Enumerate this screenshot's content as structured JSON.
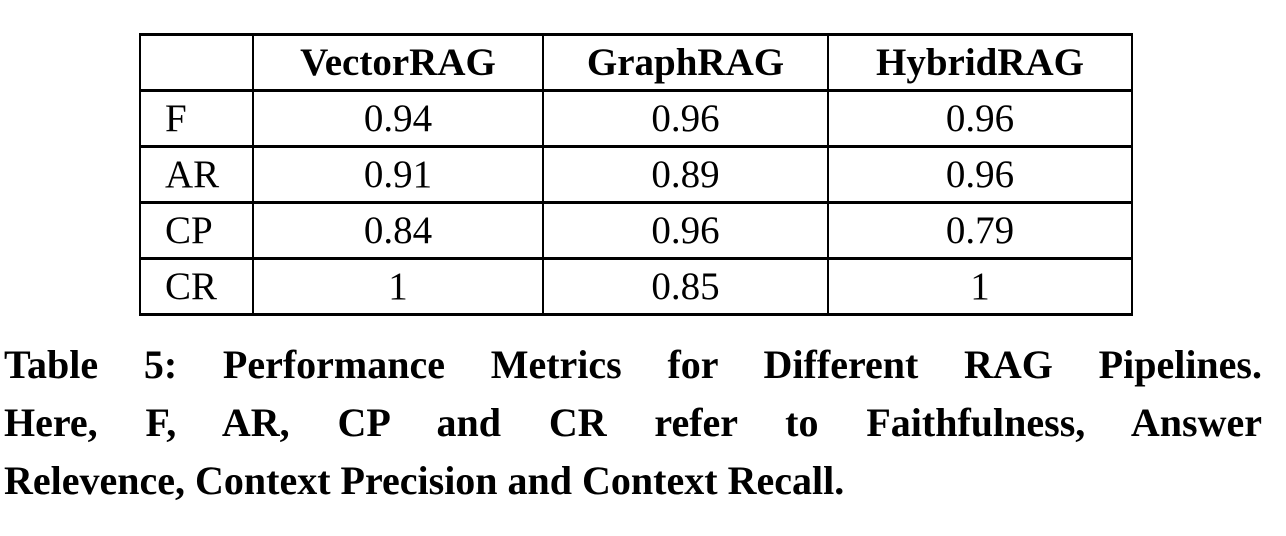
{
  "table": {
    "title": "Table 5",
    "columns": [
      "",
      "VectorRAG",
      "GraphRAG",
      "HybridRAG"
    ],
    "rows": [
      {
        "label": "F",
        "values": [
          "0.94",
          "0.96",
          "0.96"
        ]
      },
      {
        "label": "AR",
        "values": [
          "0.91",
          "0.89",
          "0.96"
        ]
      },
      {
        "label": "CP",
        "values": [
          "0.84",
          "0.96",
          "0.79"
        ]
      },
      {
        "label": "CR",
        "values": [
          "1",
          "0.85",
          "1"
        ]
      }
    ]
  },
  "caption": {
    "lines": [
      "Table 5: Performance Metrics for Different RAG Pipelines.",
      "Here, F, AR, CP and CR refer to Faithfulness, Answer",
      "Relevence, Context Precision and Context Recall."
    ],
    "full_text": "Table 5: Performance Metrics for Different RAG Pipelines. Here, F, AR, CP and CR refer to Faithfulness, Answer Relevence, Context Precision and Context Recall."
  },
  "chart_data": {
    "type": "table",
    "title": "Table 5: Performance Metrics for Different RAG Pipelines",
    "columns": [
      "",
      "VectorRAG",
      "GraphRAG",
      "HybridRAG"
    ],
    "row_labels": [
      "F",
      "AR",
      "CP",
      "CR"
    ],
    "row_label_meanings": {
      "F": "Faithfulness",
      "AR": "Answer Relevence",
      "CP": "Context Precision",
      "CR": "Context Recall"
    },
    "series": [
      {
        "name": "VectorRAG",
        "values": [
          0.94,
          0.91,
          0.84,
          1
        ]
      },
      {
        "name": "GraphRAG",
        "values": [
          0.96,
          0.89,
          0.96,
          0.85
        ]
      },
      {
        "name": "HybridRAG",
        "values": [
          0.96,
          0.96,
          0.79,
          1
        ]
      }
    ]
  }
}
